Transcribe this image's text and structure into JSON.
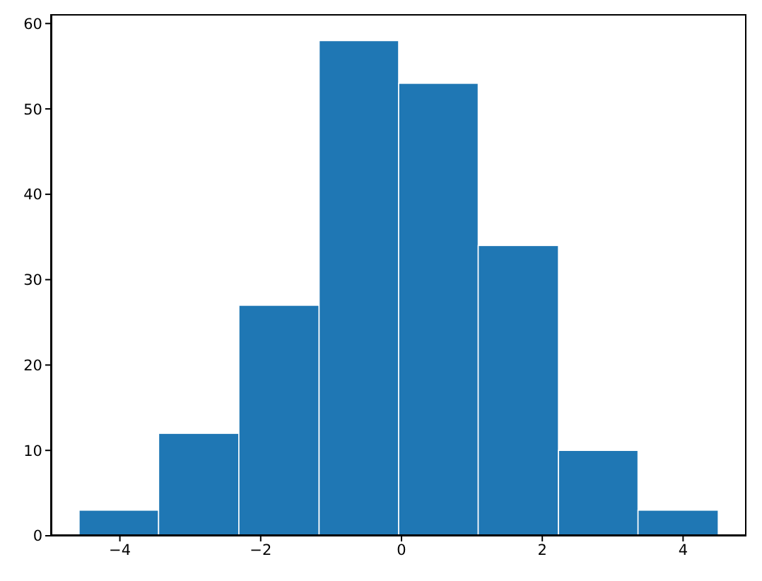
{
  "chart_data": {
    "type": "histogram",
    "bins": [
      -4.58,
      -3.45,
      -2.31,
      -1.17,
      -0.04,
      1.09,
      2.23,
      3.36,
      4.5
    ],
    "values": [
      3,
      12,
      27,
      58,
      53,
      34,
      10,
      3
    ],
    "color": "#1f77b4",
    "xlim": [
      -4.98,
      4.9
    ],
    "xticks": [
      {
        "value": -4,
        "label": "−4"
      },
      {
        "value": -2,
        "label": "−2"
      },
      0,
      2,
      4
    ],
    "ylim": [
      0,
      61.1
    ],
    "yticks": [
      0,
      10,
      20,
      30,
      40,
      50,
      60
    ]
  }
}
